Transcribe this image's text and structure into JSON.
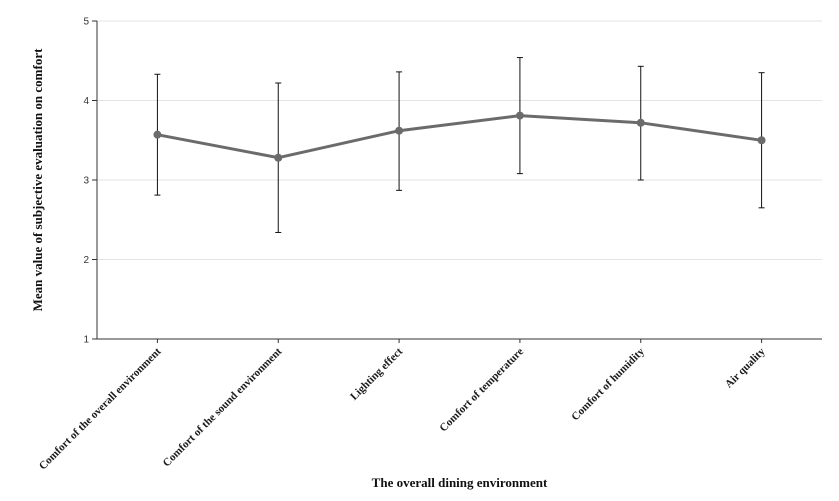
{
  "chart_data": {
    "type": "line",
    "title": "",
    "xlabel": "The overall dining environment",
    "ylabel": "Mean value of subjective evaluation on comfort",
    "ylim": [
      1,
      5
    ],
    "yticks": [
      1,
      2,
      3,
      4,
      5
    ],
    "grid": true,
    "categories": [
      "Comfort of the overall environment",
      "Comfort of the sound environment",
      "Lighting effect",
      "Comfort of temperature",
      "Comfort of humidity",
      "Air quality"
    ],
    "values": [
      3.57,
      3.28,
      3.62,
      3.81,
      3.72,
      3.5
    ],
    "error_low": [
      2.81,
      2.34,
      2.87,
      3.08,
      3.0,
      2.65
    ],
    "error_high": [
      4.33,
      4.22,
      4.36,
      4.54,
      4.43,
      4.35
    ],
    "colors": {
      "line": "#6b6b6b",
      "marker": "#6b6b6b",
      "errorbar": "#111111",
      "grid": "#e3e3e3",
      "axis": "#333333"
    }
  }
}
